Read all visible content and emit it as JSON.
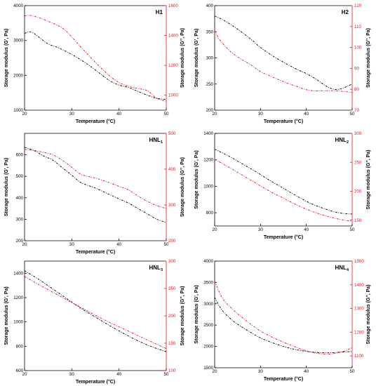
{
  "chart_data": [
    {
      "type": "line",
      "title": "H1",
      "xlabel": "Temperature (°C)",
      "ylabel": "Storage modulus (G', Pa)",
      "y2label": "Storage modulus (G'', Pa)",
      "xlim": [
        20,
        50
      ],
      "xticks": [
        20,
        30,
        40,
        50
      ],
      "ylim": [
        1000,
        4000
      ],
      "yticks": [
        1000,
        2000,
        3000,
        4000
      ],
      "y2lim": [
        900,
        1600
      ],
      "y2ticks": [
        1000,
        1200,
        1400,
        1600
      ],
      "series": [
        {
          "axis": "left",
          "color": "#000000",
          "x": [
            20,
            21,
            22,
            23,
            25,
            27,
            30,
            33,
            36,
            38,
            40,
            42,
            44,
            46,
            48,
            50
          ],
          "y": [
            3200,
            3250,
            3200,
            3100,
            2900,
            2800,
            2600,
            2350,
            2050,
            1850,
            1720,
            1650,
            1540,
            1430,
            1340,
            1310
          ]
        },
        {
          "axis": "right",
          "color": "#e8141e",
          "x": [
            20,
            21,
            23,
            25,
            28,
            30,
            32,
            35,
            38,
            40,
            42,
            44,
            46,
            48,
            50
          ],
          "y": [
            1530,
            1535,
            1520,
            1495,
            1450,
            1390,
            1320,
            1220,
            1130,
            1085,
            1060,
            1045,
            1030,
            980,
            960
          ]
        }
      ]
    },
    {
      "type": "line",
      "title": "H2",
      "xlabel": "Temperature (°C)",
      "ylabel": "Storage modulus (G', Pa)",
      "y2label": "Storage modulus (G'', Pa)",
      "xlim": [
        20,
        50
      ],
      "xticks": [
        20,
        30,
        40,
        50
      ],
      "ylim": [
        200,
        400
      ],
      "yticks": [
        200,
        250,
        300,
        350,
        400
      ],
      "y2lim": [
        70,
        120
      ],
      "y2ticks": [
        70,
        80,
        90,
        100,
        110,
        120
      ],
      "series": [
        {
          "axis": "left",
          "color": "#000000",
          "x": [
            20,
            22,
            25,
            28,
            30,
            33,
            36,
            38,
            40,
            42,
            44,
            45,
            46,
            47,
            48,
            49,
            50
          ],
          "y": [
            380,
            372,
            355,
            335,
            320,
            302,
            287,
            278,
            270,
            260,
            248,
            243,
            240,
            240,
            242,
            246,
            250
          ]
        },
        {
          "axis": "right",
          "color": "#e8141e",
          "x": [
            20,
            21,
            23,
            25,
            28,
            30,
            33,
            36,
            38,
            40,
            42,
            44,
            46,
            48,
            50
          ],
          "y": [
            108,
            104,
            99,
            95.5,
            91.5,
            88.5,
            85.5,
            82.8,
            81.3,
            79.8,
            79.2,
            79.3,
            79.3,
            79.0,
            78.5
          ]
        }
      ]
    },
    {
      "type": "line",
      "title": "HNL1",
      "xlabel": "Temperature (°C)",
      "ylabel": "Storage modulus (G', Pa)",
      "y2label": "Storage modulus (G'', Pa)",
      "xlim": [
        20,
        50
      ],
      "xticks": [
        20,
        30,
        40,
        50
      ],
      "ylim": [
        200,
        700
      ],
      "yticks": [
        200,
        300,
        400,
        500,
        600
      ],
      "y2lim": [
        200,
        500
      ],
      "y2ticks": [
        200,
        300,
        400,
        500
      ],
      "series": [
        {
          "axis": "left",
          "color": "#000000",
          "x": [
            20,
            22,
            24,
            26,
            28,
            30,
            32,
            35,
            38,
            40,
            42,
            44,
            46,
            48,
            50
          ],
          "y": [
            635,
            620,
            595,
            575,
            540,
            505,
            470,
            445,
            415,
            395,
            375,
            350,
            325,
            300,
            285
          ]
        },
        {
          "axis": "right",
          "color": "#e8141e",
          "x": [
            20,
            22,
            24,
            26,
            28,
            30,
            32,
            35,
            38,
            40,
            42,
            44,
            46,
            48,
            50
          ],
          "y": [
            455,
            452,
            447,
            440,
            425,
            405,
            385,
            375,
            362,
            352,
            342,
            325,
            310,
            298,
            290
          ]
        }
      ]
    },
    {
      "type": "line",
      "title": "HNL2",
      "xlabel": "Temperature (°C)",
      "ylabel": "Storage modulus (G', Pa)",
      "y2label": "Storage modulus (G'', Pa)",
      "xlim": [
        20,
        50
      ],
      "xticks": [
        20,
        30,
        40,
        50
      ],
      "ylim": [
        700,
        1400
      ],
      "yticks": [
        800,
        1000,
        1200,
        1400
      ],
      "y2lim": [
        140,
        300
      ],
      "y2ticks": [
        150,
        200,
        250,
        300
      ],
      "series": [
        {
          "axis": "left",
          "color": "#000000",
          "x": [
            20,
            23,
            26,
            29,
            32,
            35,
            38,
            41,
            44,
            47,
            50
          ],
          "y": [
            1280,
            1230,
            1170,
            1110,
            1045,
            985,
            925,
            870,
            830,
            800,
            790
          ]
        },
        {
          "axis": "right",
          "color": "#e8141e",
          "x": [
            20,
            23,
            26,
            29,
            32,
            35,
            38,
            41,
            44,
            47,
            50
          ],
          "y": [
            255,
            242,
            228,
            214,
            200,
            188,
            176,
            166,
            158,
            152,
            148
          ]
        }
      ]
    },
    {
      "type": "line",
      "title": "HNL3",
      "xlabel": "Temperature (°C)",
      "ylabel": "Storage modulus (G', Pa)",
      "y2label": "Storage modulus (G'', Pa)",
      "xlim": [
        20,
        50
      ],
      "xticks": [
        20,
        30,
        40,
        50
      ],
      "ylim": [
        600,
        1500
      ],
      "yticks": [
        600,
        800,
        1000,
        1200,
        1400
      ],
      "y2lim": [
        100,
        300
      ],
      "y2ticks": [
        100,
        150,
        200,
        250,
        300
      ],
      "series": [
        {
          "axis": "left",
          "color": "#000000",
          "x": [
            20,
            23,
            26,
            29,
            32,
            35,
            38,
            41,
            44,
            47,
            50
          ],
          "y": [
            1420,
            1350,
            1270,
            1190,
            1110,
            1040,
            970,
            905,
            845,
            795,
            755
          ]
        },
        {
          "axis": "right",
          "color": "#e8141e",
          "x": [
            20,
            23,
            26,
            29,
            32,
            35,
            38,
            41,
            44,
            47,
            50
          ],
          "y": [
            272,
            257,
            243,
            229,
            215,
            201,
            188,
            176,
            164,
            152,
            140
          ]
        }
      ]
    },
    {
      "type": "line",
      "title": "HNL4",
      "xlabel": "Temperature (°C)",
      "ylabel": "Storage modulus (G', Pa)",
      "y2label": "Storage modulus (G'', Pa)",
      "xlim": [
        20,
        50
      ],
      "xticks": [
        20,
        30,
        40,
        50
      ],
      "ylim": [
        1500,
        4000
      ],
      "yticks": [
        1500,
        2000,
        2500,
        3000,
        3500,
        4000
      ],
      "y2lim": [
        1050,
        1500
      ],
      "y2ticks": [
        1100,
        1200,
        1300,
        1400,
        1500
      ],
      "series": [
        {
          "axis": "left",
          "color": "#000000",
          "x": [
            20,
            21,
            22,
            24,
            26,
            28,
            30,
            33,
            36,
            39,
            42,
            45,
            48,
            50
          ],
          "y": [
            3150,
            2950,
            2800,
            2600,
            2450,
            2320,
            2200,
            2070,
            1970,
            1900,
            1860,
            1850,
            1870,
            1880
          ]
        },
        {
          "axis": "right",
          "color": "#e8141e",
          "x": [
            20,
            21,
            22,
            24,
            26,
            28,
            30,
            33,
            36,
            39,
            42,
            45,
            48,
            50
          ],
          "y": [
            1415,
            1370,
            1335,
            1295,
            1262,
            1232,
            1205,
            1175,
            1150,
            1128,
            1112,
            1108,
            1118,
            1135
          ]
        }
      ]
    }
  ]
}
